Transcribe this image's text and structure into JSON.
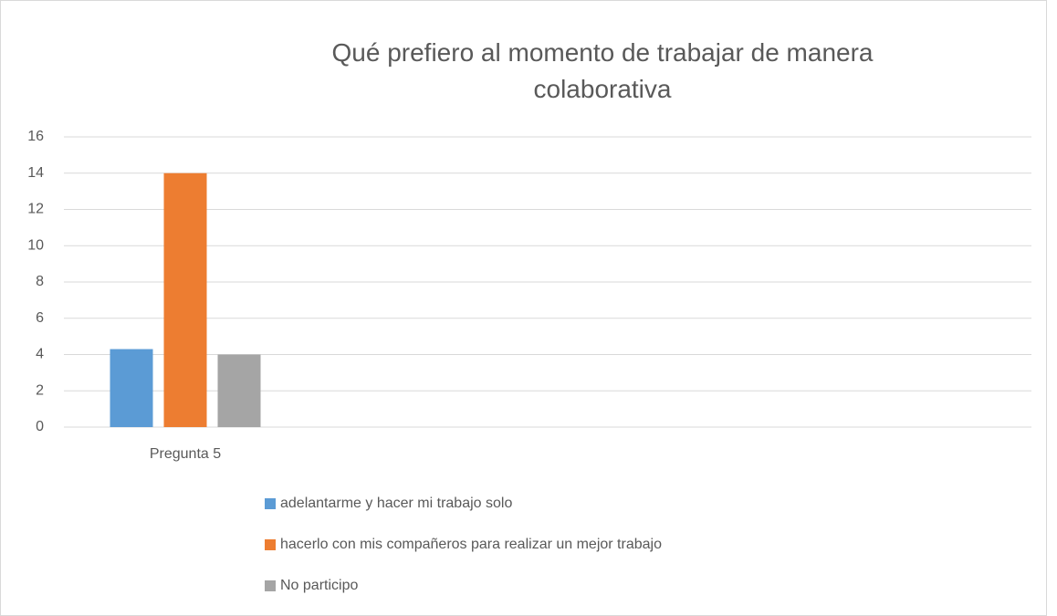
{
  "chart_data": {
    "type": "bar",
    "title": "Qué prefiero al momento de trabajar de manera colaborativa",
    "categories": [
      "Pregunta 5"
    ],
    "series": [
      {
        "name": "adelantarme y hacer mi trabajo solo",
        "color": "#5b9bd5",
        "values": [
          4.3
        ]
      },
      {
        "name": "hacerlo con mis compañeros para realizar un mejor trabajo",
        "color": "#ed7d31",
        "values": [
          14
        ]
      },
      {
        "name": "No participo",
        "color": "#a5a5a5",
        "values": [
          4
        ]
      }
    ],
    "ylim": [
      0,
      16
    ],
    "yticks": [
      0,
      2,
      4,
      6,
      8,
      10,
      12,
      14,
      16
    ],
    "grid": true,
    "legend": "bottom"
  }
}
